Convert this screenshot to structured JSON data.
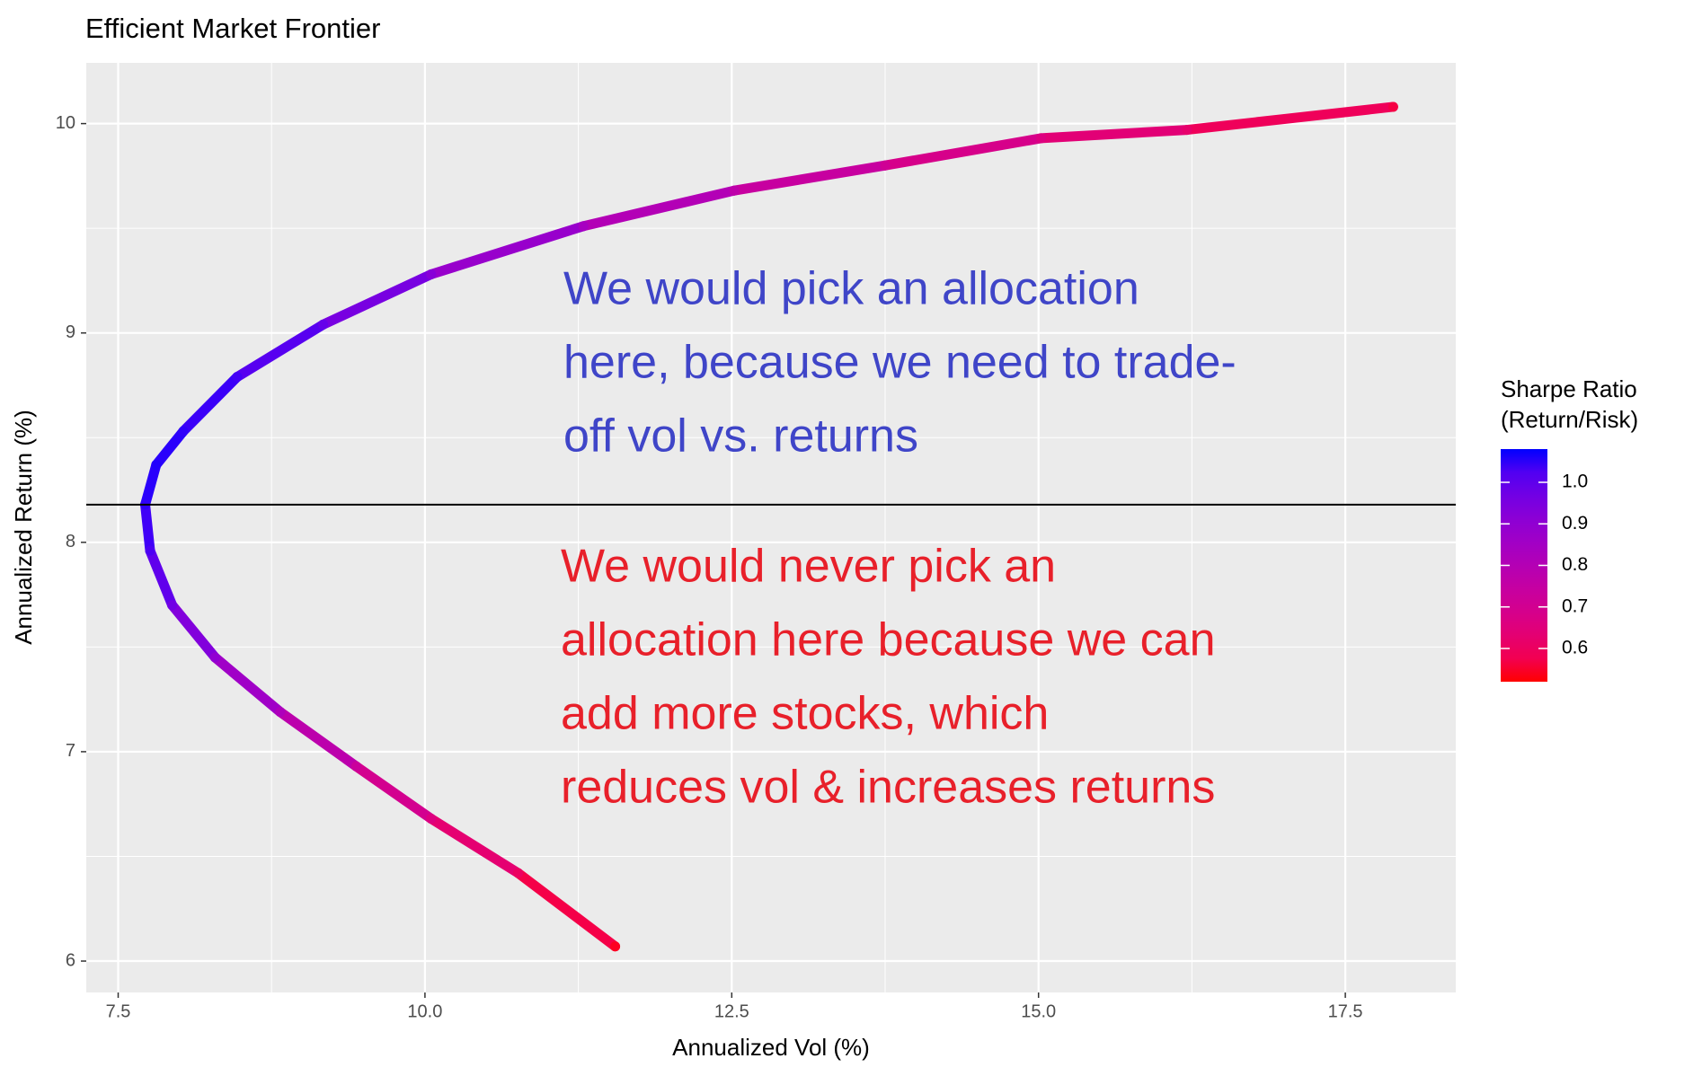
{
  "chart_data": {
    "type": "scatter",
    "title": "Efficient Market Frontier",
    "x_label": "Annualized Vol (%)",
    "y_label": "Annualized Return (%)",
    "x": [
      17.89,
      16.21,
      15.02,
      13.75,
      12.52,
      11.29,
      10.05,
      9.17,
      8.47,
      8.03,
      7.81,
      7.72,
      7.76,
      7.94,
      8.29,
      8.82,
      9.44,
      10.05,
      10.76,
      11.55
    ],
    "series": [
      {
        "name": "Sharpe Ratio",
        "values": [
          10.08,
          9.97,
          9.93,
          9.8,
          9.68,
          9.51,
          9.28,
          9.04,
          8.79,
          8.53,
          8.37,
          8.18,
          7.96,
          7.7,
          7.45,
          7.19,
          6.93,
          6.68,
          6.42,
          6.07
        ],
        "color_values": [
          0.56,
          0.62,
          0.66,
          0.71,
          0.77,
          0.84,
          0.92,
          0.99,
          1.04,
          1.06,
          1.07,
          1.06,
          1.03,
          0.97,
          0.9,
          0.82,
          0.73,
          0.66,
          0.6,
          0.53
        ]
      }
    ],
    "xlim": [
      7.24,
      18.4
    ],
    "ylim": [
      5.85,
      10.29
    ],
    "xticks": [
      7.5,
      {
        "value": 10,
        "label": "10.0"
      },
      12.5,
      {
        "value": 15,
        "label": "15.0"
      },
      17.5
    ],
    "yticks": [
      6,
      7,
      8,
      9,
      10
    ],
    "grid": true,
    "hline": 8.18,
    "legend": {
      "title": [
        "Sharpe Ratio",
        "(Return/Risk)"
      ],
      "position": "right",
      "low_color": "#ff0000",
      "high_color": "#0000ff",
      "limits": [
        0.52,
        1.08
      ],
      "ticks": [
        1.0,
        0.9,
        0.8,
        0.7,
        0.6
      ]
    },
    "annotations": [
      {
        "color": "#3f45c8",
        "lines": [
          "We would pick an allocation",
          "here, because we need to trade-",
          "off vol vs. returns"
        ]
      },
      {
        "color": "#e8202a",
        "lines": [
          "We would never pick an",
          "allocation here because we can",
          "add more stocks, which",
          "reduces vol & increases returns"
        ]
      }
    ]
  }
}
